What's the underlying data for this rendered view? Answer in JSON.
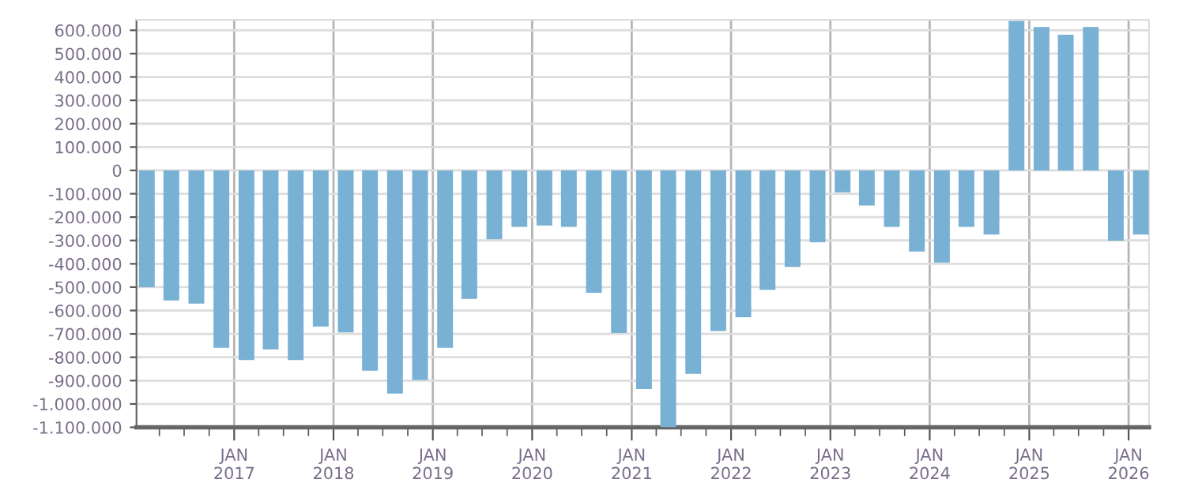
{
  "chart_data": {
    "type": "bar",
    "color": "#78b1d4",
    "grid": true,
    "x": [
      "2016-02-15",
      "2016-05-15",
      "2016-08-15",
      "2016-11-15",
      "2017-02-15",
      "2017-05-15",
      "2017-08-15",
      "2017-11-15",
      "2018-02-15",
      "2018-05-15",
      "2018-08-15",
      "2018-11-15",
      "2019-02-15",
      "2019-05-15",
      "2019-08-15",
      "2019-11-15",
      "2020-02-15",
      "2020-05-15",
      "2020-08-15",
      "2020-11-15",
      "2021-02-15",
      "2021-05-15",
      "2021-08-15",
      "2021-11-15",
      "2022-02-15",
      "2022-05-15",
      "2022-08-15",
      "2022-11-15",
      "2023-02-15",
      "2023-05-15",
      "2023-08-15",
      "2023-11-15",
      "2024-02-15",
      "2024-05-15",
      "2024-08-15",
      "2024-11-15",
      "2025-02-15",
      "2025-05-15",
      "2025-08-15",
      "2025-11-15",
      "2026-02-15"
    ],
    "values": [
      -500000,
      -557000,
      -570000,
      -760000,
      -812000,
      -766000,
      -812000,
      -668000,
      -694000,
      -858000,
      -956000,
      -897000,
      -760000,
      -550000,
      -295000,
      -242000,
      -236000,
      -242000,
      -524000,
      -696000,
      -936000,
      -1100000,
      -871000,
      -688000,
      -629000,
      -511000,
      -413000,
      -308000,
      -94000,
      -151000,
      -242000,
      -347000,
      -395000,
      -242000,
      -275000,
      640000,
      614000,
      581000,
      614000,
      -301000,
      -275000
    ],
    "xlim": [
      "2016-01-08",
      "2026-03-17"
    ],
    "ylim": [
      -1100000,
      645000
    ],
    "yticks": [
      {
        "value": -1100000,
        "label": "-1.100.000"
      },
      {
        "value": -1000000,
        "label": "-1.000.000"
      },
      {
        "value": -900000,
        "label": "-900.000"
      },
      {
        "value": -800000,
        "label": "-800.000"
      },
      {
        "value": -700000,
        "label": "-700.000"
      },
      {
        "value": -600000,
        "label": "-600.000"
      },
      {
        "value": -500000,
        "label": "-500.000"
      },
      {
        "value": -400000,
        "label": "-400.000"
      },
      {
        "value": -300000,
        "label": "-300.000"
      },
      {
        "value": -200000,
        "label": "-200.000"
      },
      {
        "value": -100000,
        "label": "-100.000"
      },
      0,
      {
        "value": 100000,
        "label": "100.000"
      },
      {
        "value": 200000,
        "label": "200.000"
      },
      {
        "value": 300000,
        "label": "300.000"
      },
      {
        "value": 400000,
        "label": "400.000"
      },
      {
        "value": 500000,
        "label": "500.000"
      },
      {
        "value": 600000,
        "label": "600.000"
      }
    ],
    "xticks": [
      {
        "value": "2016-04-01",
        "label": null
      },
      {
        "value": "2016-07-01",
        "label": null
      },
      {
        "value": "2016-10-01",
        "label": null
      },
      {
        "value": "2017-01-01",
        "label": "JAN\n2017"
      },
      {
        "value": "2017-04-01",
        "label": null
      },
      {
        "value": "2017-07-01",
        "label": null
      },
      {
        "value": "2017-10-01",
        "label": null
      },
      {
        "value": "2018-01-01",
        "label": "JAN\n2018"
      },
      {
        "value": "2018-04-01",
        "label": null
      },
      {
        "value": "2018-07-01",
        "label": null
      },
      {
        "value": "2018-10-01",
        "label": null
      },
      {
        "value": "2019-01-01",
        "label": "JAN\n2019"
      },
      {
        "value": "2019-04-01",
        "label": null
      },
      {
        "value": "2019-07-01",
        "label": null
      },
      {
        "value": "2019-10-01",
        "label": null
      },
      {
        "value": "2020-01-01",
        "label": "JAN\n2020"
      },
      {
        "value": "2020-04-01",
        "label": null
      },
      {
        "value": "2020-07-01",
        "label": null
      },
      {
        "value": "2020-10-01",
        "label": null
      },
      {
        "value": "2021-01-01",
        "label": "JAN\n2021"
      },
      {
        "value": "2021-04-01",
        "label": null
      },
      {
        "value": "2021-07-01",
        "label": null
      },
      {
        "value": "2021-10-01",
        "label": null
      },
      {
        "value": "2022-01-01",
        "label": "JAN\n2022"
      },
      {
        "value": "2022-04-01",
        "label": null
      },
      {
        "value": "2022-07-01",
        "label": null
      },
      {
        "value": "2022-10-01",
        "label": null
      },
      {
        "value": "2023-01-01",
        "label": "JAN\n2023"
      },
      {
        "value": "2023-04-01",
        "label": null
      },
      {
        "value": "2023-07-01",
        "label": null
      },
      {
        "value": "2023-10-01",
        "label": null
      },
      {
        "value": "2024-01-01",
        "label": "JAN\n2024"
      },
      {
        "value": "2024-04-01",
        "label": null
      },
      {
        "value": "2024-07-01",
        "label": null
      },
      {
        "value": "2024-10-01",
        "label": null
      },
      {
        "value": "2025-01-01",
        "label": "JAN\n2025"
      },
      {
        "value": "2025-04-01",
        "label": null
      },
      {
        "value": "2025-07-01",
        "label": null
      },
      {
        "value": "2025-10-01",
        "label": null
      },
      {
        "value": "2026-01-01",
        "label": "JAN\n2026"
      }
    ]
  }
}
